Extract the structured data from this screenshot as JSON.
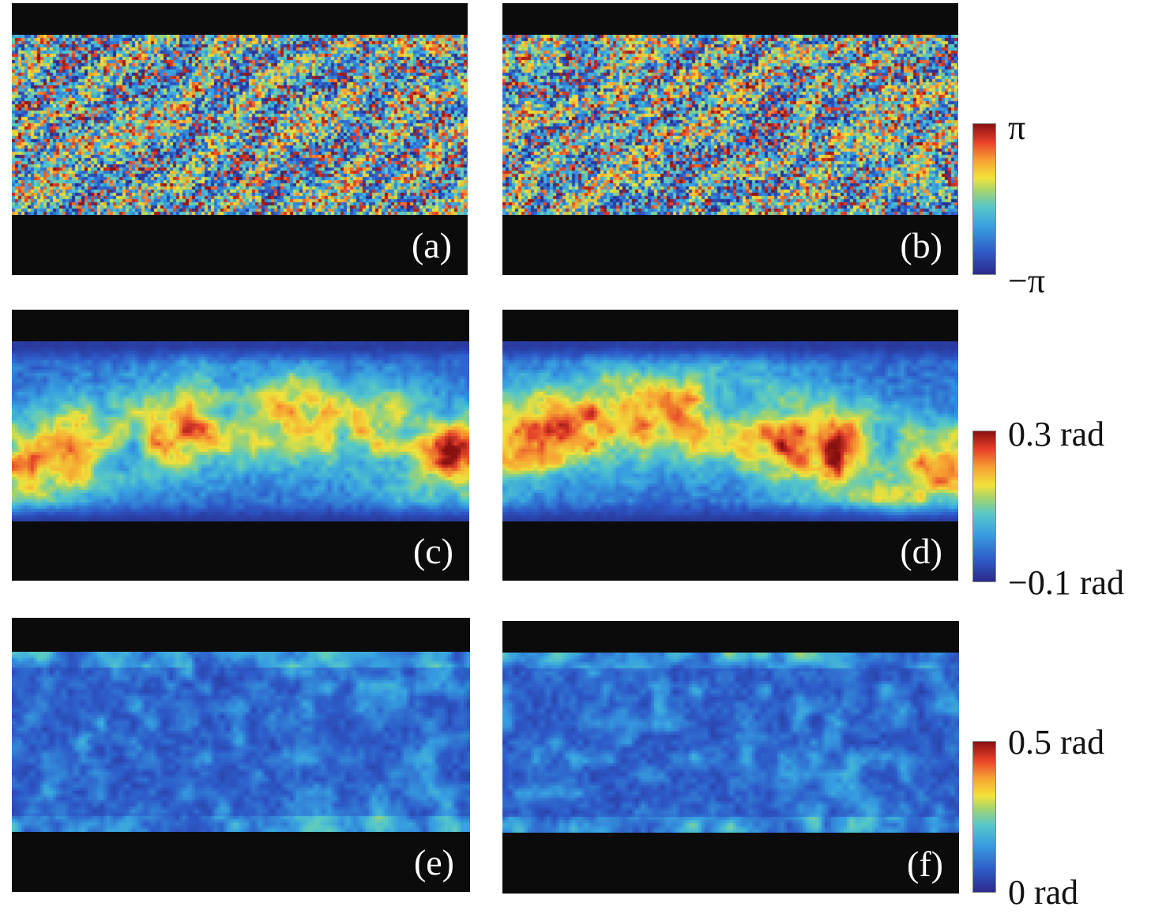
{
  "panels": [
    {
      "id": "a",
      "label": "(a)",
      "map_type": "wrapped-phase-noise"
    },
    {
      "id": "b",
      "label": "(b)",
      "map_type": "wrapped-phase-noise"
    },
    {
      "id": "c",
      "label": "(c)",
      "map_type": "unwrapped-phase"
    },
    {
      "id": "d",
      "label": "(d)",
      "map_type": "unwrapped-phase"
    },
    {
      "id": "e",
      "label": "(e)",
      "map_type": "phase-error"
    },
    {
      "id": "f",
      "label": "(f)",
      "map_type": "phase-error"
    }
  ],
  "colorbars": [
    {
      "id": "phase",
      "max_label": "π",
      "min_label": "−π",
      "colormap": "jet"
    },
    {
      "id": "unwrapped",
      "max_label": "0.3 rad",
      "min_label": "−0.1 rad",
      "colormap": "jet"
    },
    {
      "id": "error",
      "max_label": "0.5 rad",
      "min_label": "0 rad",
      "colormap": "jet"
    }
  ],
  "colors": {
    "background": "#ffffff",
    "mask": "#0b0b0b",
    "label_text": "#ffffff"
  }
}
